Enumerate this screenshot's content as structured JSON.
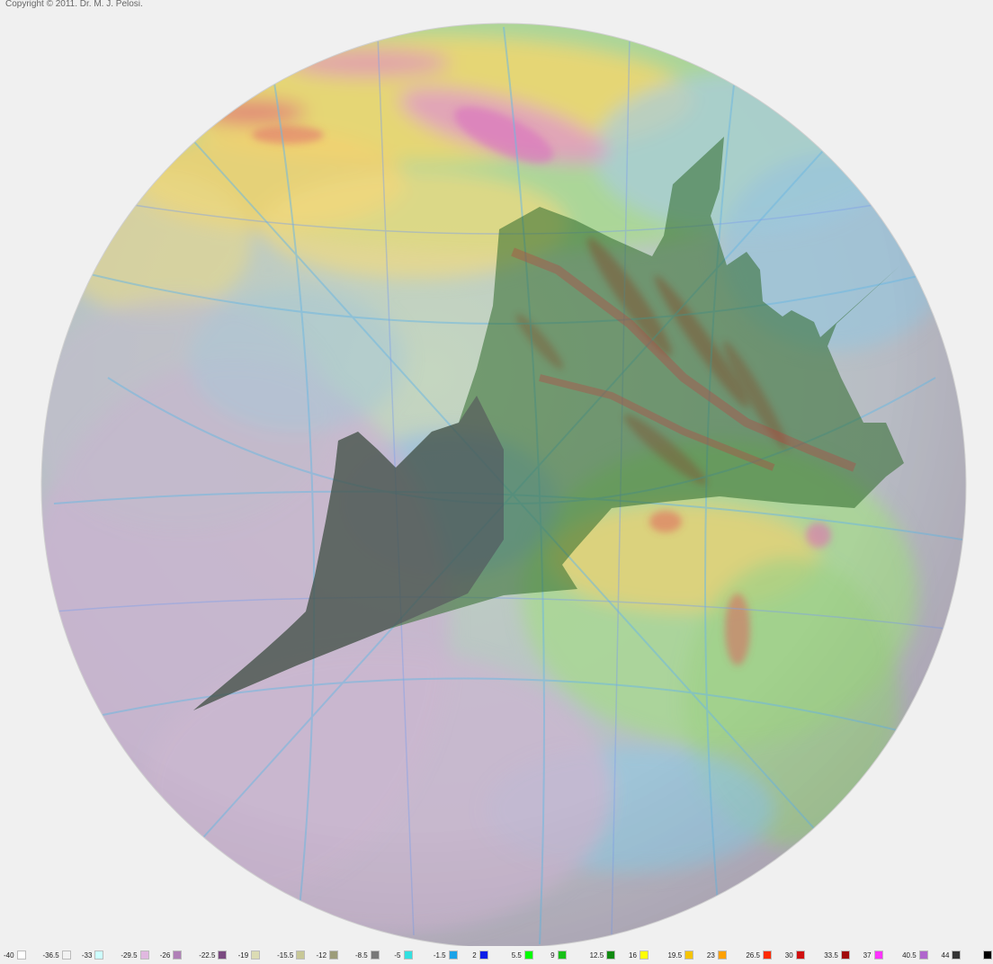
{
  "copyright": "Copyright © 2011. Dr. M. J. Pelosi.",
  "chart_data": {
    "type": "heatmap",
    "title": "",
    "colorscale": [
      {
        "value": "-40",
        "color": "#ffffff"
      },
      {
        "value": "-36.5",
        "color": "#f2f2f2"
      },
      {
        "value": "-33",
        "color": "#ccffff"
      },
      {
        "value": "-29.5",
        "color": "#e0b8e0"
      },
      {
        "value": "-26",
        "color": "#b07fb7"
      },
      {
        "value": "-22.5",
        "color": "#7a4a80"
      },
      {
        "value": "-19",
        "color": "#dcdcb4"
      },
      {
        "value": "-15.5",
        "color": "#c8c896"
      },
      {
        "value": "-12",
        "color": "#9c9c7a"
      },
      {
        "value": "-8.5",
        "color": "#777777"
      },
      {
        "value": "-5",
        "color": "#33e0e0"
      },
      {
        "value": "-1.5",
        "color": "#1ca3e8"
      },
      {
        "value": "2",
        "color": "#0b1ee8"
      },
      {
        "value": "5.5",
        "color": "#00ff00"
      },
      {
        "value": "9",
        "color": "#18c018"
      },
      {
        "value": "12.5",
        "color": "#108a10"
      },
      {
        "value": "16",
        "color": "#ffff00"
      },
      {
        "value": "19.5",
        "color": "#f5c400"
      },
      {
        "value": "23",
        "color": "#ffa000"
      },
      {
        "value": "26.5",
        "color": "#ff2a00"
      },
      {
        "value": "30",
        "color": "#d01010"
      },
      {
        "value": "33.5",
        "color": "#a00a0a"
      },
      {
        "value": "37",
        "color": "#ff33ff"
      },
      {
        "value": "40.5",
        "color": "#b066cc"
      },
      {
        "value": "44",
        "color": "#333333"
      },
      {
        "value": "",
        "color": "#000000"
      }
    ]
  }
}
